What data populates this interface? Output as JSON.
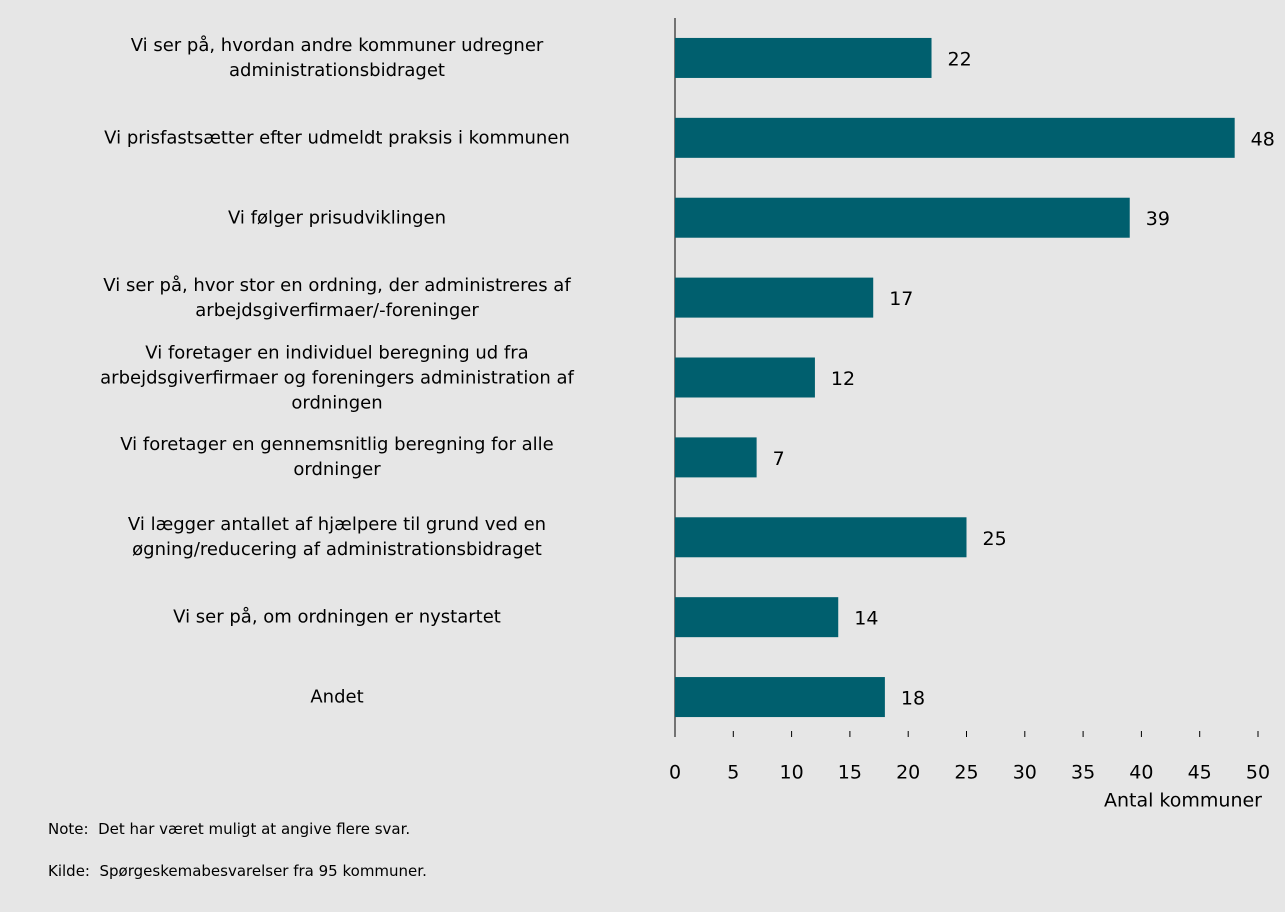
{
  "chart_data": {
    "type": "barh",
    "categories": [
      "Vi ser på, hvordan andre kommuner udregner\nadministrationsbidraget",
      "Vi prisfastsætter efter udmeldt praksis i kommunen",
      "Vi følger prisudviklingen",
      "Vi ser på, hvor stor en ordning, der administreres af\narbejdsgiverfirmaer/-foreninger",
      "Vi foretager en individuel beregning ud fra\narbejdsgiverfirmaer og foreningers administration af\nordningen",
      "Vi foretager en gennemsnitlig beregning for alle\nordninger",
      "Vi lægger antallet af hjælpere til grund ved en\nøgning/reducering af administrationsbidraget",
      "Vi ser på, om ordningen er nystartet",
      "Andet"
    ],
    "values": [
      22,
      48,
      39,
      17,
      12,
      7,
      25,
      14,
      18
    ],
    "color": "#005f6e",
    "xlim": [
      0,
      50
    ],
    "xticks": [
      0,
      5,
      10,
      15,
      20,
      25,
      30,
      35,
      40,
      45,
      50
    ],
    "x_label": "Antal kommuner",
    "note": "Note:  Det har været muligt at angive flere svar.",
    "source": "Kilde:  Spørgeskemabesvarelser fra 95 kommuner."
  }
}
